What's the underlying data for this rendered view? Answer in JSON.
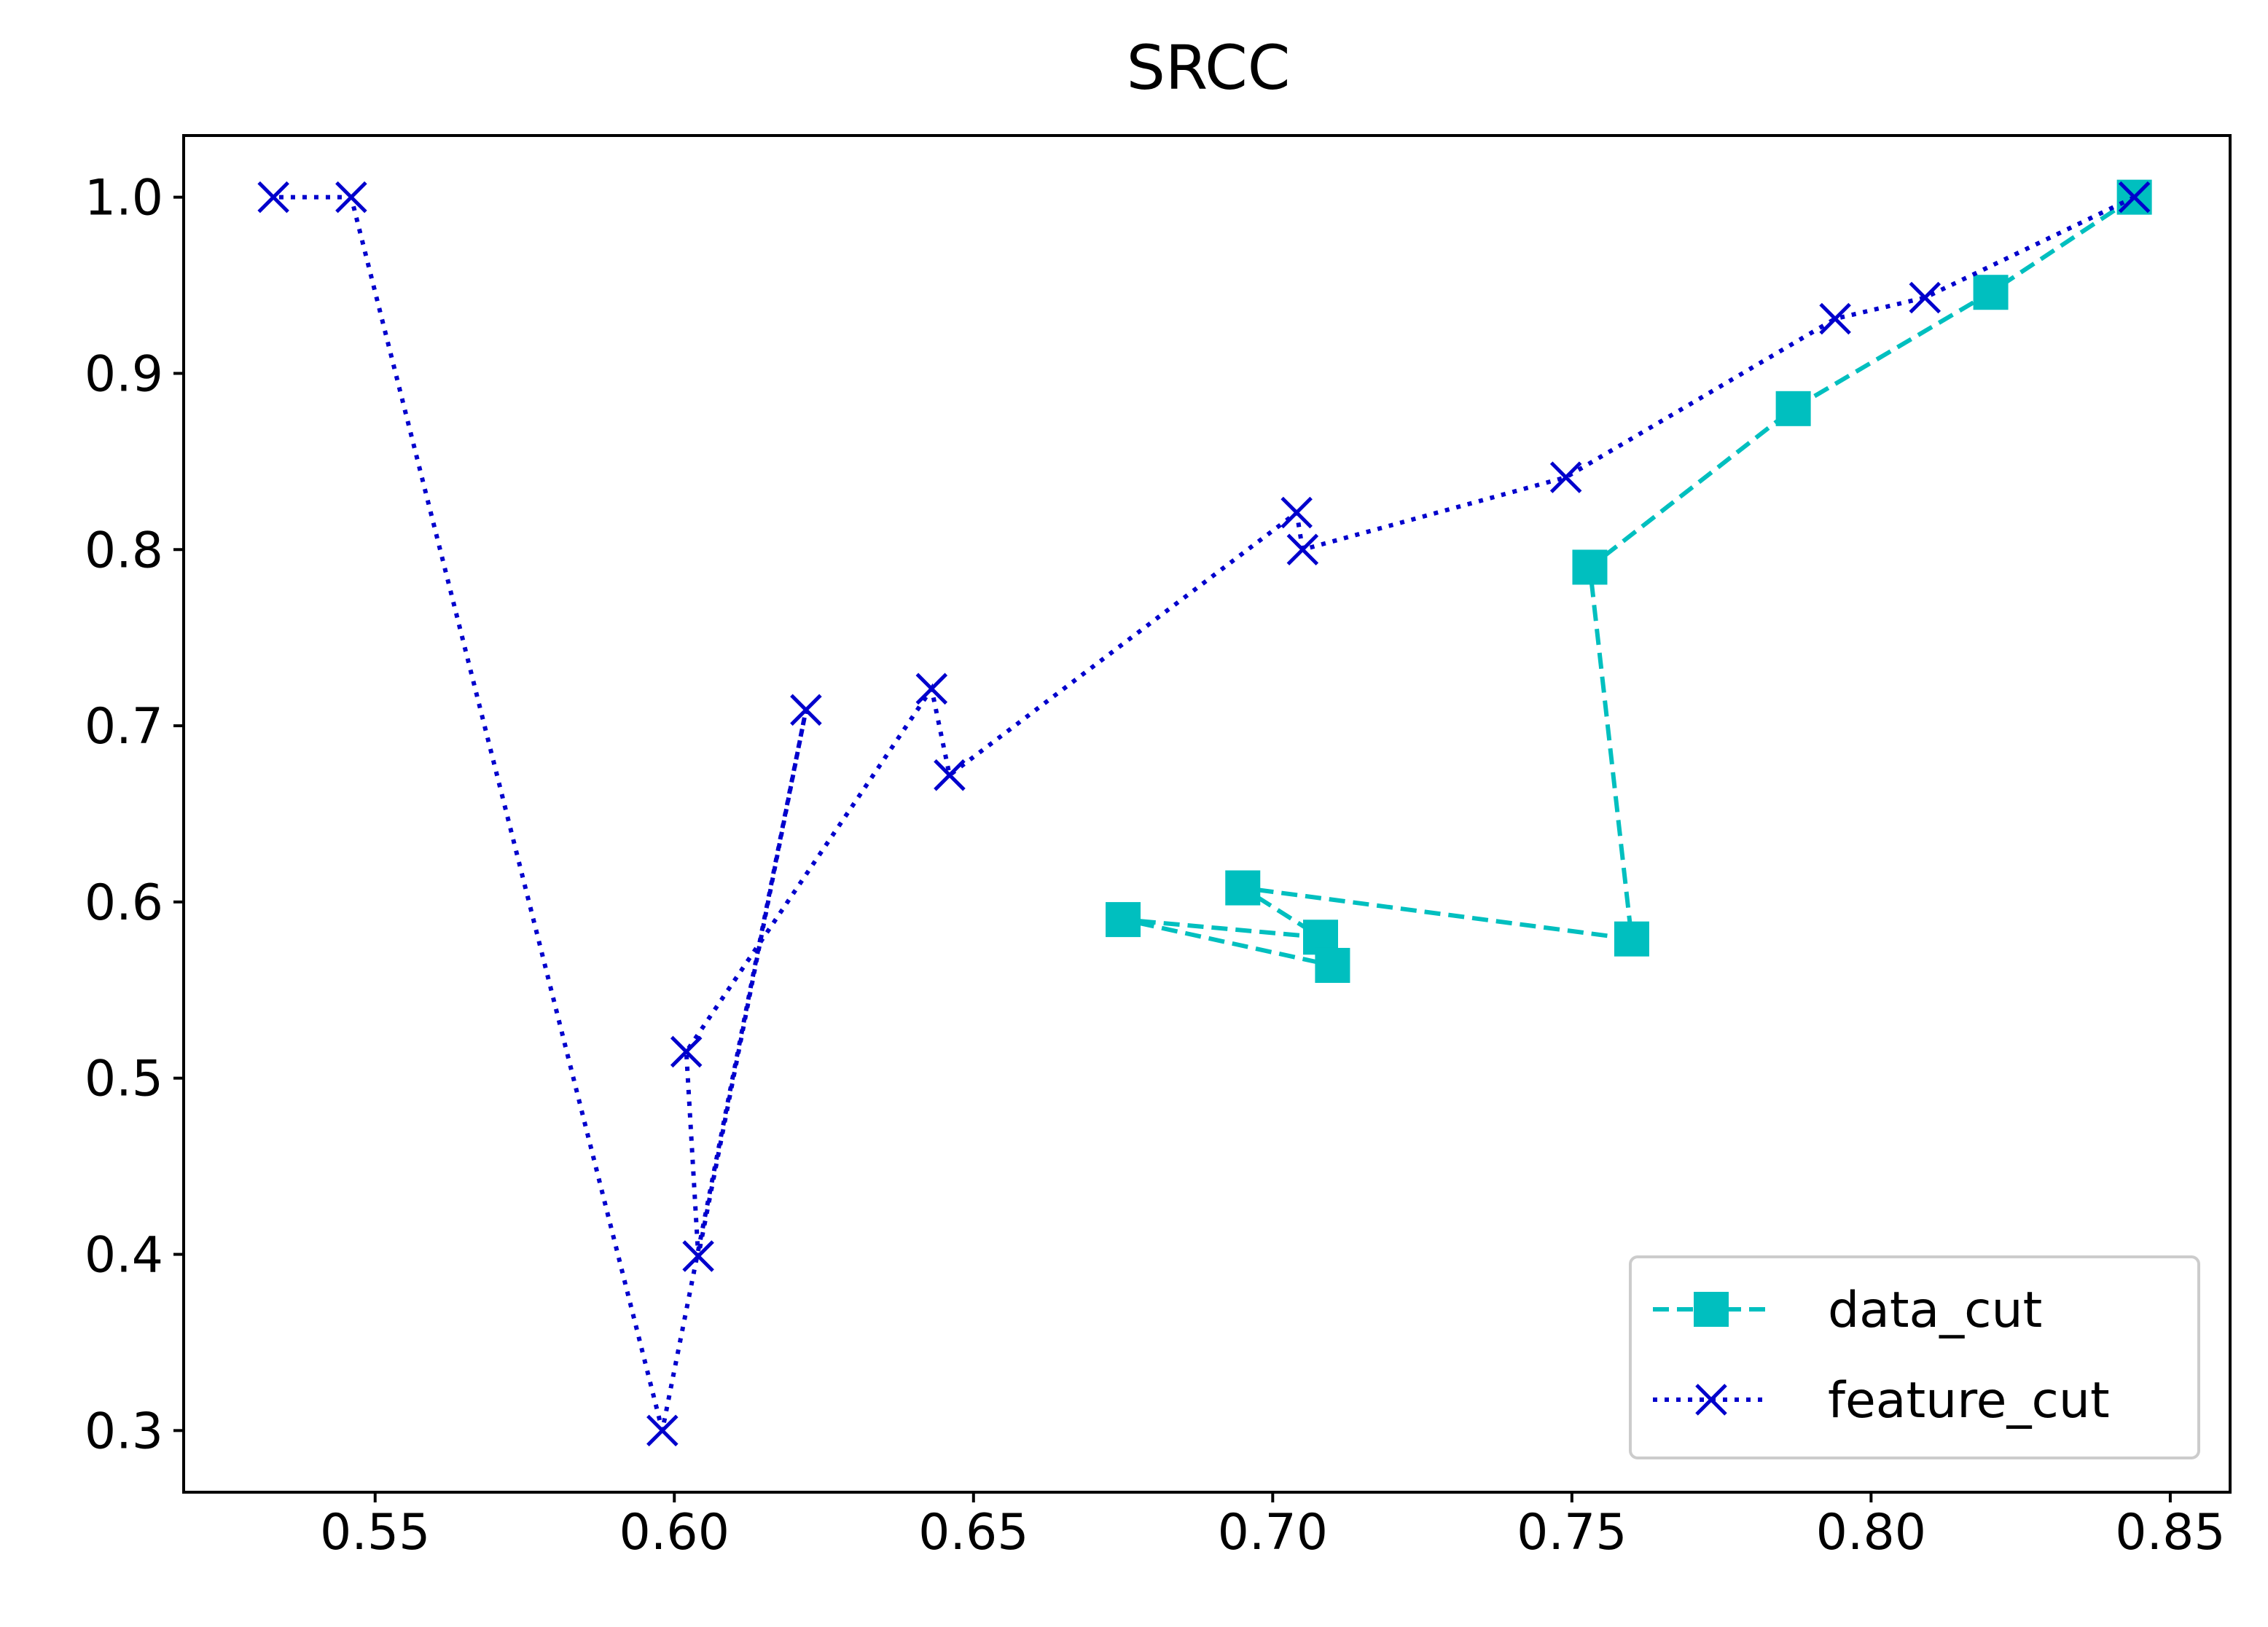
{
  "chart_data": {
    "type": "line",
    "title": "SRCC",
    "xlabel": "",
    "ylabel": "",
    "xlim": [
      0.518,
      0.86
    ],
    "ylim": [
      0.265,
      1.035
    ],
    "xticks": [
      0.55,
      0.6,
      0.65,
      0.7,
      0.75,
      0.8,
      0.85
    ],
    "xtick_labels": [
      "0.55",
      "0.60",
      "0.65",
      "0.70",
      "0.75",
      "0.80",
      "0.85"
    ],
    "yticks": [
      0.3,
      0.4,
      0.5,
      0.6,
      0.7,
      0.8,
      0.9,
      1.0
    ],
    "ytick_labels": [
      "0.3",
      "0.4",
      "0.5",
      "0.6",
      "0.7",
      "0.8",
      "0.9",
      "1.0"
    ],
    "grid": false,
    "legend_position": "lower-right",
    "series": [
      {
        "name": "data_cut",
        "color": "#00bfbf",
        "linestyle": "dashed",
        "marker": "square",
        "x": [
          0.844,
          0.82,
          0.787,
          0.753,
          0.76,
          0.695,
          0.708,
          0.675,
          0.71
        ],
        "y": [
          1.0,
          0.946,
          0.88,
          0.79,
          0.579,
          0.608,
          0.58,
          0.59,
          0.564
        ]
      },
      {
        "name": "feature_cut",
        "color": "#0000cc",
        "linestyle": "dotted",
        "marker": "x",
        "x": [
          0.844,
          0.809,
          0.794,
          0.749,
          0.705,
          0.704,
          0.646,
          0.643,
          0.602,
          0.604,
          0.622,
          0.598,
          0.546,
          0.533
        ],
        "y": [
          1.0,
          0.943,
          0.931,
          0.841,
          0.8,
          0.821,
          0.672,
          0.721,
          0.515,
          0.399,
          0.709,
          0.3,
          1.0,
          1.0
        ]
      }
    ]
  }
}
